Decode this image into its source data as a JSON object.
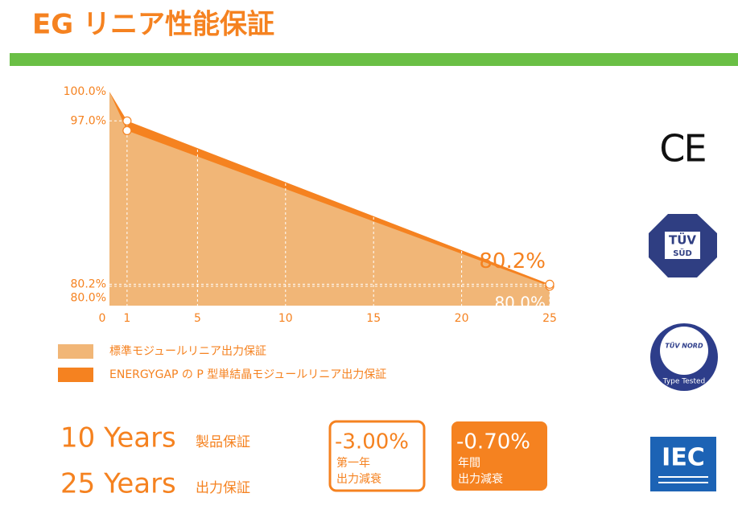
{
  "title": "EG リニア性能保証",
  "chart_data": {
    "type": "area",
    "x": [
      0,
      1,
      25
    ],
    "series": [
      {
        "name": "標準モジュールリニア出力保証",
        "color": "#f1b677",
        "values": [
          100,
          96,
          80.0
        ],
        "value_labels": [
          null,
          null,
          "80.0%"
        ]
      },
      {
        "name": "ENERGYGAP の P 型単結晶モジュールリニア出力保証",
        "color": "#f58220",
        "values": [
          100,
          97,
          80.2
        ],
        "value_labels": [
          null,
          null,
          "80.2%"
        ]
      }
    ],
    "xlim": [
      0,
      25
    ],
    "xticks": [
      0,
      1,
      5,
      10,
      15,
      20,
      25
    ],
    "ylim": [
      78,
      100.5
    ],
    "yticks": [
      {
        "value": 100,
        "label": "100.0%"
      },
      {
        "value": 97,
        "label": "97.0%"
      },
      {
        "value": 80.2,
        "label": "80.2%"
      },
      {
        "value": 80,
        "label": "80.0%"
      }
    ],
    "grid": true
  },
  "warranty": [
    {
      "years": "10 Years",
      "label": "製品保証"
    },
    {
      "years": "25 Years",
      "label": "出力保証"
    }
  ],
  "boxes": [
    {
      "value": "-3.00%",
      "line1": "第一年",
      "line2": "出力減衰"
    },
    {
      "value": "-0.70%",
      "line1": "年間",
      "line2": "出力減衰"
    }
  ],
  "logos": {
    "ce": "CE",
    "tuv_sud": "TÜV",
    "tuv_sud_sub": "SÜD",
    "tuv_nord": "TÜV NORD",
    "tuv_nord_sub": "Type Tested",
    "iec": "IEC"
  }
}
